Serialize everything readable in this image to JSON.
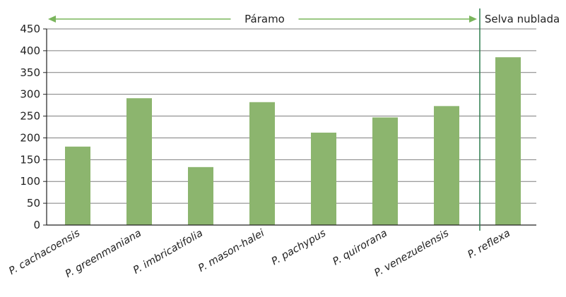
{
  "chart_data": {
    "type": "bar",
    "categories": [
      "P. cachacoensis",
      "P. greenmaniana",
      "P. imbricatifolia",
      "P. mason-halei",
      "P. pachypus",
      "P. quirorana",
      "P. venezuelensis",
      "P. reflexa"
    ],
    "values": [
      180,
      291,
      133,
      282,
      212,
      247,
      273,
      385
    ],
    "ylim": [
      0,
      450
    ],
    "yticks": [
      0,
      50,
      100,
      150,
      200,
      250,
      300,
      350,
      400,
      450
    ],
    "grid": true,
    "regions": [
      {
        "label": "Páramo",
        "from_category": 0,
        "to_category": 6
      },
      {
        "label": "Selva nublada",
        "from_category": 7,
        "to_category": 7
      }
    ],
    "colors": {
      "bar": "#8cb56e",
      "grid": "#7f7f7f",
      "arrow": "#7ab55c",
      "divider": "#2e7d4f"
    }
  }
}
